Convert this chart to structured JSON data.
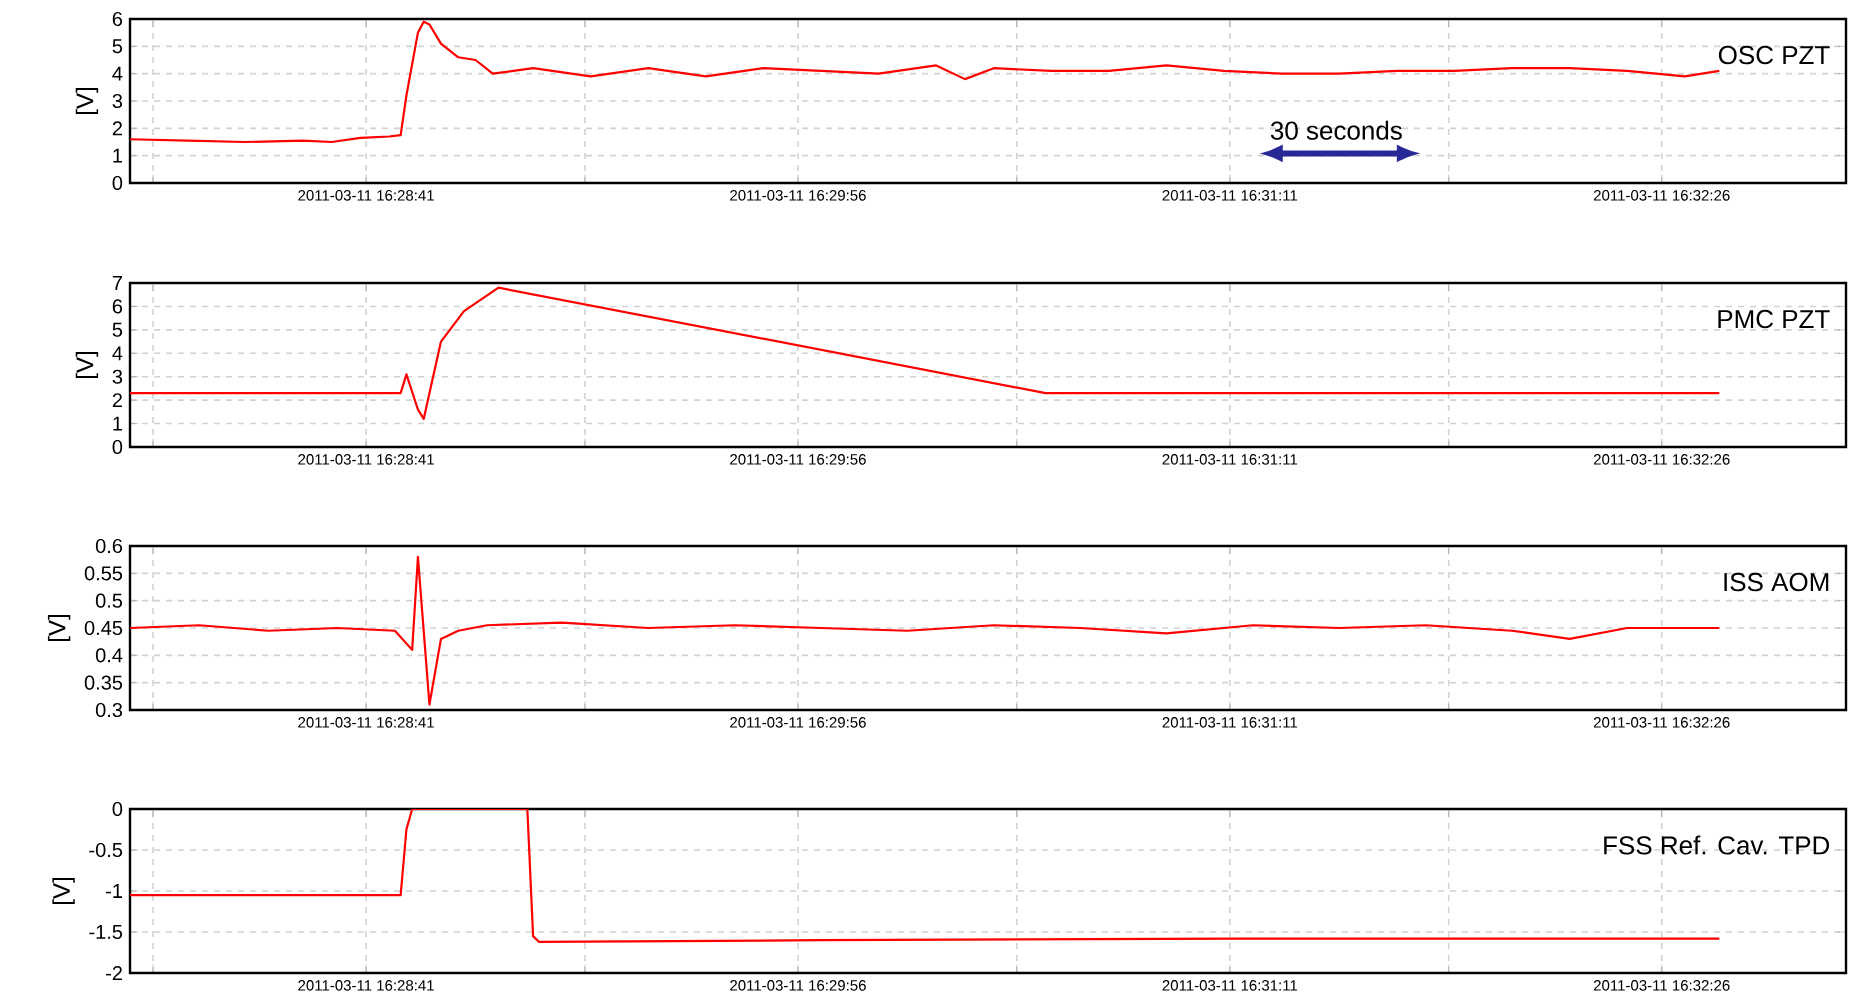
{
  "chart_data": [
    {
      "type": "line",
      "ylabel": "[V]",
      "annotations": [
        "30 seconds",
        "OSC PZT"
      ],
      "grid": true,
      "x": [
        "2011-03-11T16:28:00",
        "2011-03-11T16:28:10",
        "2011-03-11T16:28:20",
        "2011-03-11T16:28:30",
        "2011-03-11T16:28:35",
        "2011-03-11T16:28:40",
        "2011-03-11T16:28:45",
        "2011-03-11T16:28:47",
        "2011-03-11T16:28:48",
        "2011-03-11T16:28:50",
        "2011-03-11T16:28:51",
        "2011-03-11T16:28:52",
        "2011-03-11T16:28:54",
        "2011-03-11T16:28:57",
        "2011-03-11T16:29:00",
        "2011-03-11T16:29:03",
        "2011-03-11T16:29:10",
        "2011-03-11T16:29:20",
        "2011-03-11T16:29:30",
        "2011-03-11T16:29:40",
        "2011-03-11T16:29:50",
        "2011-03-11T16:30:00",
        "2011-03-11T16:30:10",
        "2011-03-11T16:30:20",
        "2011-03-11T16:30:25",
        "2011-03-11T16:30:30",
        "2011-03-11T16:30:40",
        "2011-03-11T16:30:50",
        "2011-03-11T16:31:00",
        "2011-03-11T16:31:10",
        "2011-03-11T16:31:20",
        "2011-03-11T16:31:30",
        "2011-03-11T16:31:40",
        "2011-03-11T16:31:50",
        "2011-03-11T16:32:00",
        "2011-03-11T16:32:10",
        "2011-03-11T16:32:20",
        "2011-03-11T16:32:30",
        "2011-03-11T16:32:36"
      ],
      "series": [
        {
          "color": "#ff0000",
          "values": [
            1.6,
            1.55,
            1.5,
            1.55,
            1.5,
            1.65,
            1.7,
            1.75,
            3.2,
            5.5,
            5.9,
            5.8,
            5.1,
            4.6,
            4.5,
            4.0,
            4.2,
            3.9,
            4.2,
            3.9,
            4.2,
            4.1,
            4.0,
            4.3,
            3.8,
            4.2,
            4.1,
            4.1,
            4.3,
            4.1,
            4.0,
            4.0,
            4.1,
            4.1,
            4.2,
            4.2,
            4.1,
            3.9,
            4.1
          ]
        }
      ],
      "xlim": [
        "2011-03-11T16:28:00",
        "2011-03-11T16:32:58"
      ],
      "xticks": [
        {
          "value": "2011-03-11T16:28:04",
          "label": null
        },
        {
          "value": "2011-03-11T16:28:41",
          "label": "2011-03-11 16:28:41"
        },
        {
          "value": "2011-03-11T16:29:19",
          "label": null
        },
        {
          "value": "2011-03-11T16:29:56",
          "label": "2011-03-11 16:29:56"
        },
        {
          "value": "2011-03-11T16:30:34",
          "label": null
        },
        {
          "value": "2011-03-11T16:31:11",
          "label": "2011-03-11 16:31:11"
        },
        {
          "value": "2011-03-11T16:31:49",
          "label": null
        },
        {
          "value": "2011-03-11T16:32:26",
          "label": "2011-03-11 16:32:26"
        }
      ],
      "ylim": [
        0,
        6
      ],
      "yticks": [
        0,
        1,
        2,
        3,
        4,
        5,
        6
      ]
    },
    {
      "type": "line",
      "ylabel": "[V]",
      "annotations": [
        "PMC PZT"
      ],
      "grid": true,
      "x": [
        "2011-03-11T16:28:00",
        "2011-03-11T16:28:47",
        "2011-03-11T16:28:48",
        "2011-03-11T16:28:50",
        "2011-03-11T16:28:51",
        "2011-03-11T16:28:54",
        "2011-03-11T16:28:58",
        "2011-03-11T16:29:04",
        "2011-03-11T16:30:39",
        "2011-03-11T16:32:36"
      ],
      "series": [
        {
          "color": "#ff0000",
          "values": [
            2.3,
            2.3,
            3.1,
            1.6,
            1.2,
            4.5,
            5.8,
            6.8,
            2.3,
            2.3
          ]
        }
      ],
      "xlim": [
        "2011-03-11T16:28:00",
        "2011-03-11T16:32:58"
      ],
      "xticks": [
        {
          "value": "2011-03-11T16:28:04",
          "label": null
        },
        {
          "value": "2011-03-11T16:28:41",
          "label": "2011-03-11 16:28:41"
        },
        {
          "value": "2011-03-11T16:29:19",
          "label": null
        },
        {
          "value": "2011-03-11T16:29:56",
          "label": "2011-03-11 16:29:56"
        },
        {
          "value": "2011-03-11T16:30:34",
          "label": null
        },
        {
          "value": "2011-03-11T16:31:11",
          "label": "2011-03-11 16:31:11"
        },
        {
          "value": "2011-03-11T16:31:49",
          "label": null
        },
        {
          "value": "2011-03-11T16:32:26",
          "label": "2011-03-11 16:32:26"
        }
      ],
      "ylim": [
        0,
        7
      ],
      "yticks": [
        0,
        1,
        2,
        3,
        4,
        5,
        6,
        7
      ]
    },
    {
      "type": "line",
      "ylabel": "[V]",
      "annotations": [
        "ISS AOM"
      ],
      "grid": true,
      "x": [
        "2011-03-11T16:28:00",
        "2011-03-11T16:28:12",
        "2011-03-11T16:28:24",
        "2011-03-11T16:28:36",
        "2011-03-11T16:28:46",
        "2011-03-11T16:28:49",
        "2011-03-11T16:28:50",
        "2011-03-11T16:28:52",
        "2011-03-11T16:28:54",
        "2011-03-11T16:28:57",
        "2011-03-11T16:29:02",
        "2011-03-11T16:29:15",
        "2011-03-11T16:29:30",
        "2011-03-11T16:29:45",
        "2011-03-11T16:30:00",
        "2011-03-11T16:30:15",
        "2011-03-11T16:30:30",
        "2011-03-11T16:30:45",
        "2011-03-11T16:31:00",
        "2011-03-11T16:31:15",
        "2011-03-11T16:31:30",
        "2011-03-11T16:31:45",
        "2011-03-11T16:32:00",
        "2011-03-11T16:32:10",
        "2011-03-11T16:32:20",
        "2011-03-11T16:32:36"
      ],
      "series": [
        {
          "color": "#ff0000",
          "values": [
            0.45,
            0.455,
            0.445,
            0.45,
            0.445,
            0.41,
            0.58,
            0.31,
            0.43,
            0.445,
            0.455,
            0.46,
            0.45,
            0.455,
            0.45,
            0.445,
            0.455,
            0.45,
            0.44,
            0.455,
            0.45,
            0.455,
            0.445,
            0.43,
            0.45,
            0.45
          ]
        }
      ],
      "xlim": [
        "2011-03-11T16:28:00",
        "2011-03-11T16:32:58"
      ],
      "xticks": [
        {
          "value": "2011-03-11T16:28:04",
          "label": null
        },
        {
          "value": "2011-03-11T16:28:41",
          "label": "2011-03-11 16:28:41"
        },
        {
          "value": "2011-03-11T16:29:19",
          "label": null
        },
        {
          "value": "2011-03-11T16:29:56",
          "label": "2011-03-11 16:29:56"
        },
        {
          "value": "2011-03-11T16:30:34",
          "label": null
        },
        {
          "value": "2011-03-11T16:31:11",
          "label": "2011-03-11 16:31:11"
        },
        {
          "value": "2011-03-11T16:31:49",
          "label": null
        },
        {
          "value": "2011-03-11T16:32:26",
          "label": "2011-03-11 16:32:26"
        }
      ],
      "ylim": [
        0.3,
        0.6
      ],
      "yticks": [
        0.3,
        0.35,
        0.4,
        0.45,
        0.5,
        0.55,
        0.6
      ]
    },
    {
      "type": "line",
      "ylabel": "[V]",
      "annotations": [
        "FSS Ref. Cav. TPD"
      ],
      "grid": true,
      "x": [
        "2011-03-11T16:28:00",
        "2011-03-11T16:28:30",
        "2011-03-11T16:28:47",
        "2011-03-11T16:28:48",
        "2011-03-11T16:28:49",
        "2011-03-11T16:29:09",
        "2011-03-11T16:29:10",
        "2011-03-11T16:29:11",
        "2011-03-11T16:30:00",
        "2011-03-11T16:31:12",
        "2011-03-11T16:32:36"
      ],
      "series": [
        {
          "color": "#ff0000",
          "values": [
            -1.05,
            -1.05,
            -1.05,
            -0.25,
            0,
            0,
            -1.55,
            -1.62,
            -1.6,
            -1.58,
            -1.58
          ]
        }
      ],
      "xlim": [
        "2011-03-11T16:28:00",
        "2011-03-11T16:32:58"
      ],
      "xticks": [
        {
          "value": "2011-03-11T16:28:04",
          "label": null
        },
        {
          "value": "2011-03-11T16:28:41",
          "label": "2011-03-11 16:28:41"
        },
        {
          "value": "2011-03-11T16:29:19",
          "label": null
        },
        {
          "value": "2011-03-11T16:29:56",
          "label": "2011-03-11 16:29:56"
        },
        {
          "value": "2011-03-11T16:30:34",
          "label": null
        },
        {
          "value": "2011-03-11T16:31:11",
          "label": "2011-03-11 16:31:11"
        },
        {
          "value": "2011-03-11T16:31:49",
          "label": null
        },
        {
          "value": "2011-03-11T16:32:26",
          "label": "2011-03-11 16:32:26"
        }
      ],
      "ylim": [
        -2,
        0
      ],
      "yticks": [
        -2,
        -1.5,
        -1,
        -0.5,
        0
      ]
    }
  ]
}
